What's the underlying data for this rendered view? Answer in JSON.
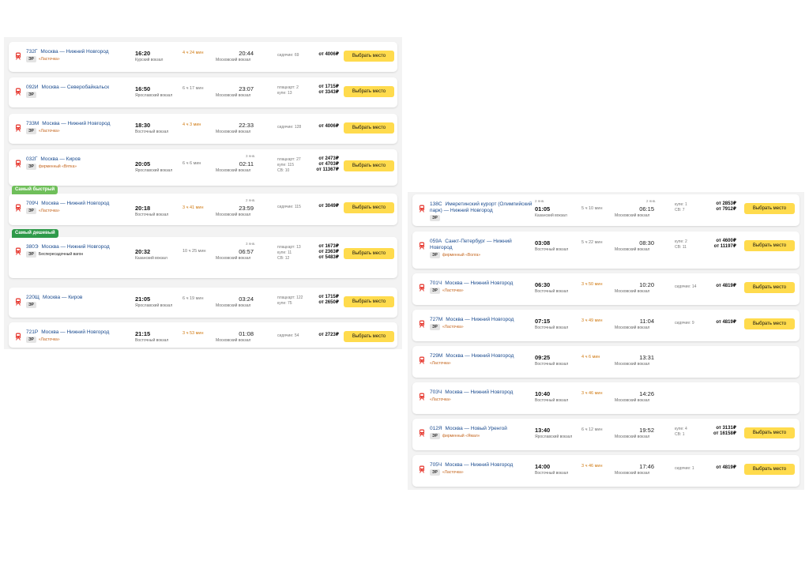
{
  "buy_label": "Выбрать место",
  "tag_er": "ЭР",
  "colors": {
    "accent_button": "#ffdb4d",
    "fastest_badge": "#6fbf5a",
    "cheapest_badge": "#2e9a4a",
    "link": "#1a4b8f",
    "brand_tag": "#c4651d"
  },
  "left_trains": [
    {
      "number": "732Г",
      "route": "Москва — Нижний Новгород",
      "tag": "«Ласточка»",
      "dep_time": "16:20",
      "dep_station": "Курский вокзал",
      "duration": "4 ч 24 мин",
      "arr_time": "20:44",
      "arr_station": "Московский вокзал",
      "seats": [
        "сидячие: 69"
      ],
      "prices": [
        "от 4006₽"
      ]
    },
    {
      "number": "092И",
      "route": "Москва — Северобайкальск",
      "dep_time": "16:50",
      "dep_station": "Ярославский вокзал",
      "duration": "6 ч 17 мин",
      "arr_time": "23:07",
      "arr_station": "Московский вокзал",
      "seats": [
        "плацкарт: 2",
        "купе: 13"
      ],
      "prices": [
        "от 1715₽",
        "от 3343₽"
      ]
    },
    {
      "number": "733М",
      "route": "Москва — Нижний Новгород",
      "tag": "«Ласточка»",
      "dep_time": "18:30",
      "dep_station": "Восточный вокзал",
      "duration": "4 ч 3 мин",
      "arr_time": "22:33",
      "arr_station": "Московский вокзал",
      "seats": [
        "сидячие: 128"
      ],
      "prices": [
        "от 4006₽"
      ]
    },
    {
      "number": "032Г",
      "route": "Москва — Киров",
      "tag": "фирменный «Вятка»",
      "dep_time": "20:05",
      "dep_station": "Ярославский вокзал",
      "duration": "6 ч 6 мин",
      "arr_date": "3 янв.",
      "arr_time": "02:11",
      "arr_station": "Московский вокзал",
      "seats": [
        "плацкарт: 27",
        "купе: 115",
        "СВ: 10"
      ],
      "prices": [
        "от 2473₽",
        "от 4703₽",
        "от 11367₽"
      ]
    },
    {
      "badge": "Самый быстрый",
      "number": "709Ч",
      "route": "Москва — Нижний Новгород",
      "tag": "«Ласточка»",
      "dep_time": "20:18",
      "dep_station": "Восточный вокзал",
      "duration": "3 ч 41 мин",
      "arr_date": "2 янв.",
      "arr_time": "23:59",
      "arr_station": "Московский вокзал",
      "seats": [
        "сидячие: 115"
      ],
      "prices": [
        "от 3049₽"
      ]
    },
    {
      "badge": "Самый дешевый",
      "number": "380Э",
      "route": "Москва — Нижний Новгород",
      "tag_plain": "Беспересадочный вагон",
      "dep_time": "20:32",
      "dep_station": "Казанский вокзал",
      "duration": "10 ч 25 мин",
      "arr_date": "3 янв.",
      "arr_time": "06:57",
      "arr_station": "Московский вокзал",
      "seats": [
        "плацкарт: 13",
        "купе: 11",
        "СВ: 12"
      ],
      "prices": [
        "от 1673₽",
        "от 2363₽",
        "от 5483₽"
      ]
    },
    {
      "number": "220Щ",
      "route": "Москва — Киров",
      "dep_time": "21:05",
      "dep_station": "Ярославский вокзал",
      "duration": "6 ч 19 мин",
      "arr_time": "03:24",
      "arr_station": "Московский вокзал",
      "seats": [
        "плацкарт: 122",
        "купе: 75"
      ],
      "prices": [
        "от 1715₽",
        "от 2650₽"
      ]
    },
    {
      "number": "721Р",
      "route": "Москва — Нижний Новгород",
      "tag": "«Ласточка»",
      "dep_time": "21:15",
      "dep_station": "Восточный вокзал",
      "duration": "3 ч 53 мин",
      "arr_time": "01:08",
      "arr_station": "Московский вокзал",
      "seats": [
        "сидячие: 54"
      ],
      "prices": [
        "от 2723₽"
      ]
    }
  ],
  "right_trains": [
    {
      "number": "138С",
      "route": "Имеретинский курорт (Олимпийский парк) — Нижний Новгород",
      "dep_date": "2 янв.",
      "dep_time": "01:05",
      "dep_station": "Казанский вокзал",
      "duration": "5 ч 10 мин",
      "arr_date": "2 янв.",
      "arr_time": "06:15",
      "arr_station": "Московский вокзал",
      "seats": [
        "купе: 1",
        "СВ: 7"
      ],
      "prices": [
        "от 2853₽",
        "от 7912₽"
      ]
    },
    {
      "number": "059А",
      "route": "Санкт-Петербург — Нижний Новгород",
      "tag": "фирменный «Волга»",
      "dep_time": "03:08",
      "dep_station": "Восточный вокзал",
      "duration": "5 ч 22 мин",
      "arr_time": "08:30",
      "arr_station": "Московский вокзал",
      "seats": [
        "купе: 2",
        "СВ: 11"
      ],
      "prices": [
        "от 4600₽",
        "от 11197₽"
      ]
    },
    {
      "number": "701Ч",
      "route": "Москва — Нижний Новгород",
      "tag": "«Ласточка»",
      "dep_time": "06:30",
      "dep_station": "Восточный вокзал",
      "duration": "3 ч 50 мин",
      "arr_time": "10:20",
      "arr_station": "Московский вокзал",
      "seats": [
        "сидячие: 14"
      ],
      "prices": [
        "от 4819₽"
      ]
    },
    {
      "number": "727М",
      "route": "Москва — Нижний Новгород",
      "tag": "«Ласточка»",
      "dep_time": "07:15",
      "dep_station": "Восточный вокзал",
      "duration": "3 ч 49 мин",
      "arr_time": "11:04",
      "arr_station": "Московский вокзал",
      "seats": [
        "сидячие: 9"
      ],
      "prices": [
        "от 4819₽"
      ]
    },
    {
      "number": "729М",
      "route": "Москва — Нижний Новгород",
      "tag_only": "«Ласточка»",
      "dep_time": "09:25",
      "dep_station": "Восточный вокзал",
      "duration": "4 ч 6 мин",
      "arr_time": "13:31",
      "arr_station": "Московский вокзал",
      "seats": [],
      "prices": []
    },
    {
      "number": "703Ч",
      "route": "Москва — Нижний Новгород",
      "tag_only": "«Ласточка»",
      "dep_time": "10:40",
      "dep_station": "Восточный вокзал",
      "duration": "3 ч 46 мин",
      "arr_time": "14:26",
      "arr_station": "Московский вокзал",
      "seats": [],
      "prices": []
    },
    {
      "number": "012Я",
      "route": "Москва — Новый Уренгой",
      "tag": "фирменный «Ямал»",
      "dep_time": "13:40",
      "dep_station": "Ярославский вокзал",
      "duration": "6 ч 12 мин",
      "arr_time": "19:52",
      "arr_station": "Московский вокзал",
      "seats": [
        "купе: 4",
        "СВ: 1"
      ],
      "prices": [
        "от 3131₽",
        "от 16158₽"
      ]
    },
    {
      "number": "705Ч",
      "route": "Москва — Нижний Новгород",
      "tag": "«Ласточка»",
      "dep_time": "14:00",
      "dep_station": "Восточный вокзал",
      "duration": "3 ч 46 мин",
      "arr_time": "17:46",
      "arr_station": "Московский вокзал",
      "seats": [
        "сидячие: 1"
      ],
      "prices": [
        "от 4819₽"
      ]
    }
  ]
}
